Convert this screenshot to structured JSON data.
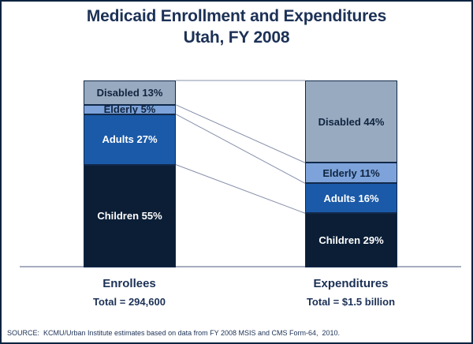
{
  "title": {
    "line1": "Medicaid Enrollment and Expenditures",
    "line2": "Utah, FY 2008"
  },
  "source": "SOURCE:  KCMU/Urban Institute estimates based on data from FY 2008 MSIS and CMS Form-64,  2010.",
  "chart_data": {
    "type": "bar",
    "subtype": "100-percent-stacked-bar-with-connectors",
    "title": "Medicaid Enrollment and Expenditures",
    "subtitle": "Utah, FY 2008",
    "unit": "%",
    "segments_top_to_bottom": [
      "Disabled",
      "Elderly",
      "Adults",
      "Children"
    ],
    "bars": [
      {
        "name": "Enrollees",
        "total_label": "Total = 294,600",
        "values": {
          "Disabled": 13,
          "Elderly": 5,
          "Adults": 27,
          "Children": 55
        }
      },
      {
        "name": "Expenditures",
        "total_label": "Total = $1.5 billion",
        "values": {
          "Disabled": 44,
          "Elderly": 11,
          "Adults": 16,
          "Children": 29
        }
      }
    ],
    "segment_colors": {
      "Disabled": "#98aabf",
      "Elderly": "#7da3da",
      "Adults": "#1b5aa8",
      "Children": "#0b1e36"
    },
    "label_text_colors": {
      "Disabled": "#10243f",
      "Elderly": "#10243f",
      "Adults": "#ffffff",
      "Children": "#ffffff"
    },
    "connector_color": "#8790ab",
    "axis_color": "#a6adc0",
    "ylim": [
      0,
      100
    ],
    "grid": false,
    "legend": "none"
  }
}
